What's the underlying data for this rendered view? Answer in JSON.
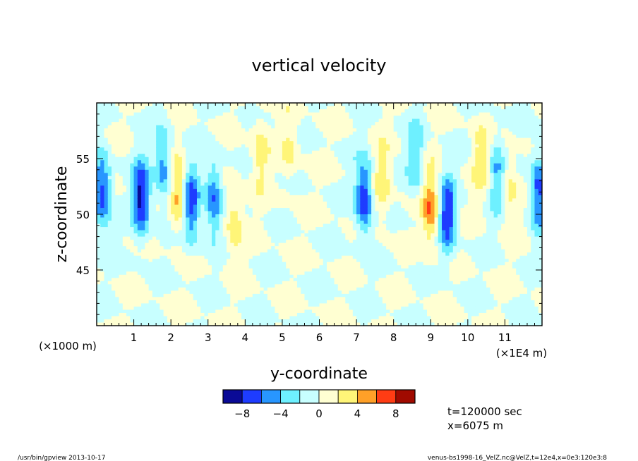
{
  "chart_data": {
    "type": "heatmap",
    "title": "vertical velocity",
    "xlabel": "y-coordinate",
    "ylabel": "z-coordinate",
    "xlim": [
      0,
      12
    ],
    "ylim": [
      40,
      60
    ],
    "x_ticks": [
      "1",
      "2",
      "3",
      "4",
      "5",
      "6",
      "7",
      "8",
      "9",
      "10",
      "11"
    ],
    "y_ticks": [
      "45",
      "50",
      "55"
    ],
    "x_unit": "(×1E4 m)",
    "y_unit": "(×1000 m)",
    "colorbar": {
      "levels": [
        -10,
        -8,
        -6,
        -4,
        -2,
        0,
        2,
        4,
        6,
        8,
        10
      ],
      "tick_labels": [
        "−8",
        "−4",
        "0",
        "4",
        "8"
      ],
      "colors": [
        "#0a0a96",
        "#1e3cff",
        "#2896ff",
        "#6ef0ff",
        "#c8ffff",
        "#ffffd2",
        "#fff578",
        "#ffa028",
        "#ff3c14",
        "#a00a00"
      ]
    },
    "blobs": [
      {
        "y": 0.15,
        "z": 52,
        "w": -7.5
      },
      {
        "y": 1.2,
        "z": 51.5,
        "w": -9
      },
      {
        "y": 1.8,
        "z": 54.5,
        "w": -5.5
      },
      {
        "y": 2.2,
        "z": 52,
        "w": 5.5
      },
      {
        "y": 2.55,
        "z": 51,
        "w": -7.5
      },
      {
        "y": 3.15,
        "z": 51.5,
        "w": -6
      },
      {
        "y": 3.7,
        "z": 49.5,
        "w": 3.5
      },
      {
        "y": 4.4,
        "z": 55.5,
        "w": 3
      },
      {
        "y": 5.2,
        "z": 56,
        "w": 2.5
      },
      {
        "y": 7.2,
        "z": 51.5,
        "w": -8
      },
      {
        "y": 7.7,
        "z": 53,
        "w": 3.5
      },
      {
        "y": 8.6,
        "z": 55,
        "w": -4
      },
      {
        "y": 9.0,
        "z": 50.5,
        "w": 6
      },
      {
        "y": 9.45,
        "z": 50,
        "w": -8
      },
      {
        "y": 10.35,
        "z": 55,
        "w": 3
      },
      {
        "y": 10.8,
        "z": 53.5,
        "w": -4.5
      },
      {
        "y": 11.1,
        "z": 52.5,
        "w": 3
      },
      {
        "y": 11.9,
        "z": 52,
        "w": -7
      }
    ],
    "annotations": [
      "t=120000 sec",
      "x=6075 m"
    ]
  },
  "footer": {
    "left": "/usr/bin/gpview   2013-10-17",
    "right": "venus-bs1998-16_VelZ.nc@VelZ,t=12e4,x=0e3:120e3:8"
  }
}
